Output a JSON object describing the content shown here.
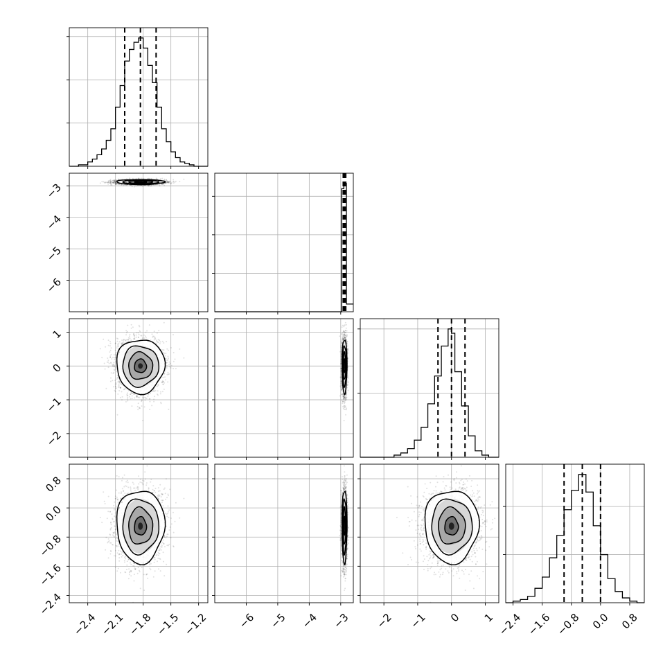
{
  "chart_data": {
    "type": "corner",
    "parameters": [
      {
        "id": "p1",
        "range": [
          -2.6,
          -1.1
        ],
        "ticks": [
          -2.4,
          -2.1,
          -1.8,
          -1.5,
          -1.2
        ],
        "tick_labels": [
          "−2.4",
          "−2.1",
          "−1.8",
          "−1.5",
          "−1.2"
        ],
        "quantiles": [
          -2.0,
          -1.83,
          -1.66
        ],
        "mean": -1.83,
        "sd": 0.13,
        "hist": {
          "edges": [
            -2.6,
            -2.55,
            -2.5,
            -2.45,
            -2.4,
            -2.35,
            -2.3,
            -2.25,
            -2.2,
            -2.15,
            -2.1,
            -2.05,
            -2.0,
            -1.95,
            -1.9,
            -1.85,
            -1.8,
            -1.75,
            -1.7,
            -1.65,
            -1.6,
            -1.55,
            -1.5,
            -1.45,
            -1.4,
            -1.35,
            -1.3,
            -1.25,
            -1.2,
            -1.15,
            -1.1
          ],
          "counts": [
            0,
            0,
            1,
            1,
            3,
            5,
            8,
            12,
            18,
            26,
            41,
            56,
            73,
            81,
            86,
            89,
            82,
            70,
            58,
            41,
            26,
            17,
            10,
            6,
            3,
            2,
            1,
            0,
            0,
            0
          ]
        }
      },
      {
        "id": "p2",
        "range": [
          -7.0,
          -2.6
        ],
        "ticks": [
          -6,
          -5,
          -4,
          -3
        ],
        "tick_labels": [
          "−6",
          "−5",
          "−4",
          "−3"
        ],
        "quantiles": [
          -2.92,
          -2.88,
          -2.84
        ],
        "mean": -2.88,
        "sd": 0.04,
        "hist": {
          "edges": [
            -7.0,
            -6.78,
            -6.56,
            -6.34,
            -6.12,
            -5.9,
            -5.68,
            -5.46,
            -5.24,
            -5.02,
            -4.8,
            -4.58,
            -4.36,
            -4.14,
            -3.92,
            -3.7,
            -3.48,
            -3.26,
            -3.04,
            -2.97,
            -2.9,
            -2.82,
            -2.6
          ],
          "counts": [
            0,
            0,
            0,
            0,
            0,
            0,
            0,
            0,
            0,
            0,
            0,
            0,
            0,
            0,
            0,
            0,
            0,
            0,
            0,
            48,
            50,
            3
          ]
        }
      },
      {
        "id": "p3",
        "range": [
          -2.7,
          1.4
        ],
        "ticks": [
          -2,
          -1,
          0,
          1
        ],
        "tick_labels": [
          "−2",
          "−1",
          "0",
          "1"
        ],
        "quantiles": [
          -0.4,
          0.0,
          0.4
        ],
        "mean": 0.0,
        "sd": 0.4,
        "hist": {
          "edges": [
            -2.7,
            -2.5,
            -2.3,
            -2.1,
            -1.9,
            -1.7,
            -1.5,
            -1.3,
            -1.1,
            -0.9,
            -0.7,
            -0.5,
            -0.3,
            -0.1,
            0.0,
            0.1,
            0.3,
            0.5,
            0.7,
            0.9,
            1.1,
            1.4
          ],
          "counts": [
            0,
            0,
            0,
            0,
            0,
            1,
            2,
            4,
            8,
            14,
            25,
            38,
            52,
            60,
            58,
            40,
            24,
            10,
            3,
            1,
            0
          ]
        }
      },
      {
        "id": "p4",
        "range": [
          -2.6,
          1.2
        ],
        "ticks": [
          -2.4,
          -1.6,
          -0.8,
          0.0,
          0.8
        ],
        "tick_labels": [
          "−2.4",
          "−1.6",
          "−0.8",
          "0.0",
          "0.8"
        ],
        "quantiles": [
          -1.0,
          -0.5,
          0.0
        ],
        "mean": -0.5,
        "sd": 0.5,
        "hist": {
          "edges": [
            -2.6,
            -2.4,
            -2.2,
            -2.0,
            -1.8,
            -1.6,
            -1.4,
            -1.2,
            -1.0,
            -0.8,
            -0.6,
            -0.4,
            -0.2,
            0.0,
            0.2,
            0.4,
            0.6,
            0.8,
            1.0,
            1.2
          ],
          "counts": [
            0,
            1,
            2,
            4,
            9,
            16,
            28,
            42,
            58,
            70,
            80,
            69,
            48,
            30,
            15,
            7,
            3,
            1,
            0
          ]
        }
      }
    ],
    "grid": false,
    "scatter_color": "#000000",
    "contour_color": "#000000"
  }
}
